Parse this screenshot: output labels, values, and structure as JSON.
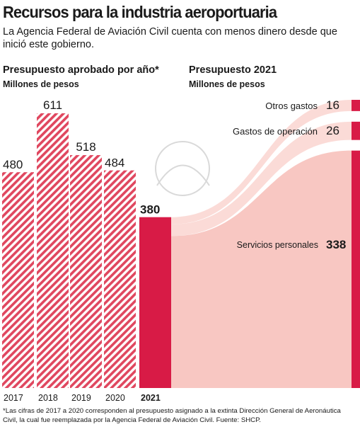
{
  "header": {
    "title": "Recursos para la industria aeroportuaria",
    "subtitle": "La Agencia Federal de Aviación Civil cuenta con menos dinero desde que inició este gobierno."
  },
  "left_section": {
    "title": "Presupuesto aprobado por año*",
    "subtitle": "Millones de pesos"
  },
  "right_section": {
    "title": "Presupuesto 2021",
    "subtitle": "Millones de pesos"
  },
  "footnote": "*Las cifras de 2017 a 2020 corresponden al presupuesto asignado a la extinta Dirección General de Aeronáutica Civil, la cual fue reemplazada por la Agencia Federal de Aviación Civil. Fuente: SHCP.",
  "colors": {
    "accent": "#d81b46",
    "hatch": "#e0475f",
    "flow_light": "#f8c4bf",
    "flow_lighter": "#fbd9d5",
    "watermark": "#d9d9d9"
  },
  "chart_data": [
    {
      "type": "bar",
      "categories": [
        "2017",
        "2018",
        "2019",
        "2020",
        "2021"
      ],
      "values": [
        480,
        611,
        518,
        484,
        380
      ],
      "ylim": [
        0,
        750
      ]
    },
    {
      "type": "bar",
      "stacked": true,
      "categories": [
        "Otros gastos",
        "Gastos de operación",
        "Servicios personales"
      ],
      "values": [
        16,
        26,
        338
      ]
    }
  ]
}
